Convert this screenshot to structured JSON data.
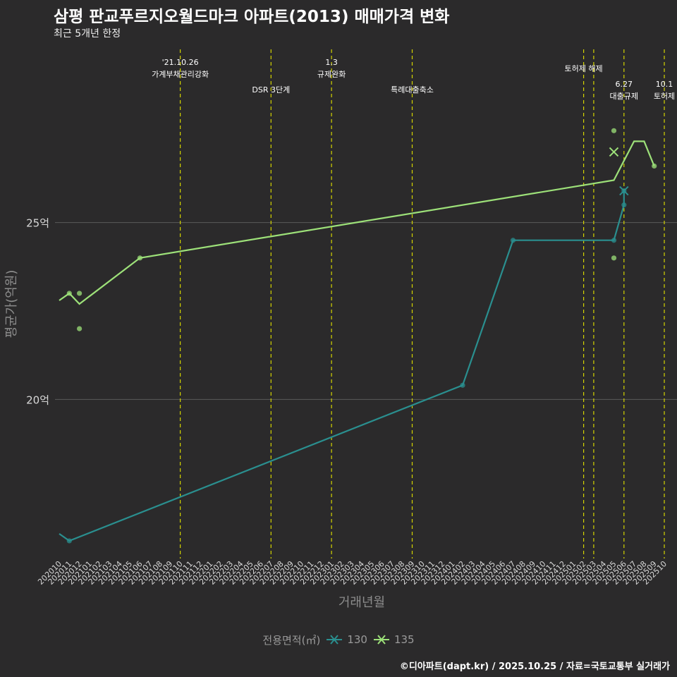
{
  "title": "삼평 판교푸르지오월드마크 아파트(2013) 매매가격 변화",
  "subtitle": "최근 5개년 한정",
  "caption": "©디아파트(dapt.kr) / 2025.10.25 / 자료=국토교통부 실거래가",
  "chart_data": {
    "type": "line",
    "xlabel": "거래년월",
    "ylabel": "평균가(억원)",
    "y_tick_values": [
      20,
      25
    ],
    "y_tick_labels": [
      "20억",
      "25억"
    ],
    "ylim": [
      15.5,
      29.9
    ],
    "categories": [
      "202010",
      "202011",
      "202012",
      "202101",
      "202102",
      "202103",
      "202104",
      "202105",
      "202106",
      "202107",
      "202108",
      "202109",
      "202110",
      "202111",
      "202112",
      "202201",
      "202202",
      "202203",
      "202204",
      "202205",
      "202206",
      "202207",
      "202208",
      "202209",
      "202210",
      "202211",
      "202212",
      "202301",
      "202302",
      "202303",
      "202304",
      "202305",
      "202306",
      "202307",
      "202308",
      "202309",
      "202310",
      "202311",
      "202312",
      "202401",
      "202402",
      "202403",
      "202404",
      "202405",
      "202406",
      "202407",
      "202408",
      "202409",
      "202410",
      "202411",
      "202412",
      "202501",
      "202502",
      "202503",
      "202504",
      "202505",
      "202506",
      "202507",
      "202508",
      "202509",
      "202510"
    ],
    "series": [
      {
        "name": "130",
        "color": "#2a8f8f",
        "line": [
          [
            "202010",
            16.2
          ],
          [
            "202011",
            16.0
          ],
          [
            "202402",
            20.4
          ],
          [
            "202407",
            24.5
          ],
          [
            "202505",
            24.5
          ],
          [
            "202506",
            25.5
          ],
          [
            "202506",
            25.9
          ]
        ],
        "points": [
          [
            "202011",
            16.0
          ],
          [
            "202402",
            20.4
          ],
          [
            "202407",
            24.5
          ],
          [
            "202505",
            24.5
          ],
          [
            "202506",
            25.5
          ],
          [
            "202506",
            25.9
          ]
        ],
        "cross_points": [
          [
            "202506",
            25.9
          ]
        ]
      },
      {
        "name": "135",
        "color": "#9de179",
        "line": [
          [
            "202010",
            22.8
          ],
          [
            "202011",
            23.0
          ],
          [
            "202012",
            22.7
          ],
          [
            "202106",
            24.0
          ],
          [
            "202505",
            26.2
          ],
          [
            "202507",
            27.3
          ],
          [
            "202508",
            27.3
          ],
          [
            "202509",
            26.6
          ]
        ],
        "points": [
          [
            "202011",
            23.0
          ],
          [
            "202012",
            23.0
          ],
          [
            "202012",
            22.0
          ],
          [
            "202106",
            24.0
          ],
          [
            "202505",
            24.0
          ],
          [
            "202505",
            27.6
          ],
          [
            "202509",
            26.6
          ]
        ],
        "cross_points": [
          [
            "202505",
            27.0
          ]
        ]
      }
    ],
    "events": [
      {
        "x": "202110",
        "date": "'21.10.26",
        "label": "가계부채관리강화"
      },
      {
        "x": "202207",
        "date": "",
        "label": "DSR 3단계"
      },
      {
        "x": "202301",
        "date": "1.3",
        "label": "규제완화"
      },
      {
        "x": "202309",
        "date": "",
        "label": "특례대출축소"
      },
      {
        "x": "202502",
        "date": "",
        "label": "토허제 해제"
      },
      {
        "x": "202503",
        "date": "",
        "label": ""
      },
      {
        "x": "202506",
        "date": "6.27",
        "label": "대출규제"
      },
      {
        "x": "202510",
        "date": "10.1",
        "label": "토허제"
      }
    ],
    "legend": {
      "title": "전용면적(㎡)",
      "items": [
        "130",
        "135"
      ]
    }
  }
}
